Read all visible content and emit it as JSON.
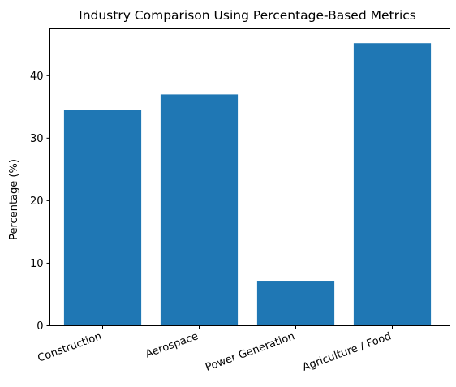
{
  "chart_data": {
    "type": "bar",
    "title": "Industry Comparison Using Percentage-Based Metrics",
    "xlabel": "",
    "ylabel": "Percentage (%)",
    "categories": [
      "Construction",
      "Aerospace",
      "Power Generation",
      "Agriculture / Food"
    ],
    "values": [
      34.5,
      37.0,
      7.2,
      45.2
    ],
    "ylim": [
      0,
      47.5
    ],
    "yticks": [
      0,
      10,
      20,
      30,
      40
    ],
    "grid": false,
    "bar_color": "#1f77b4"
  }
}
